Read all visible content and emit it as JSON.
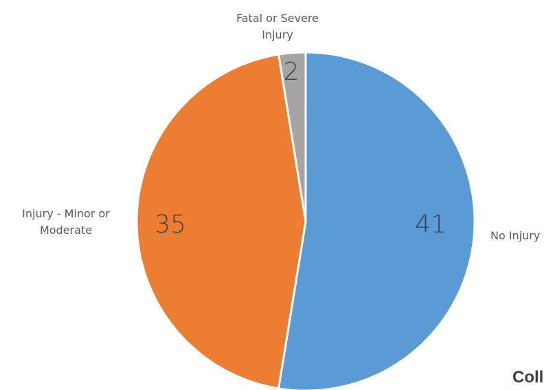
{
  "chart_data": {
    "type": "pie",
    "title": "Coll",
    "slices": [
      {
        "label": "No Injury",
        "value": 41,
        "color": "#5B9BD5"
      },
      {
        "label": "Injury - Minor or Moderate",
        "value": 35,
        "color": "#ED7D31"
      },
      {
        "label": "Fatal or Severe Injury",
        "value": 2,
        "color": "#A5A5A5"
      }
    ],
    "category_label_lines": [
      [
        "No Injury"
      ],
      [
        "Injury - Minor or",
        "Moderate"
      ],
      [
        "Fatal or Severe",
        "Injury"
      ]
    ],
    "legend": "none",
    "data_labels": true
  }
}
